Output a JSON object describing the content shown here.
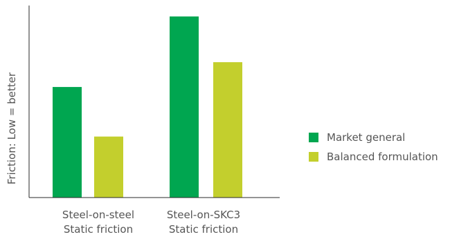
{
  "chart_data": {
    "type": "bar",
    "title": "",
    "xlabel": "",
    "ylabel": "Friction: Low = better",
    "y_ticks_shown": false,
    "ylim": [
      0,
      100
    ],
    "grid": false,
    "legend_position": "right",
    "categories": [
      [
        "Steel-on-steel",
        "Static friction"
      ],
      [
        "Steel-on-SKC3",
        "Static friction"
      ]
    ],
    "series": [
      {
        "name": "Market general",
        "color": "#00a650",
        "values": [
          58,
          95
        ]
      },
      {
        "name": "Balanced formulation",
        "color": "#c3cf2d",
        "values": [
          32,
          71
        ]
      }
    ]
  }
}
